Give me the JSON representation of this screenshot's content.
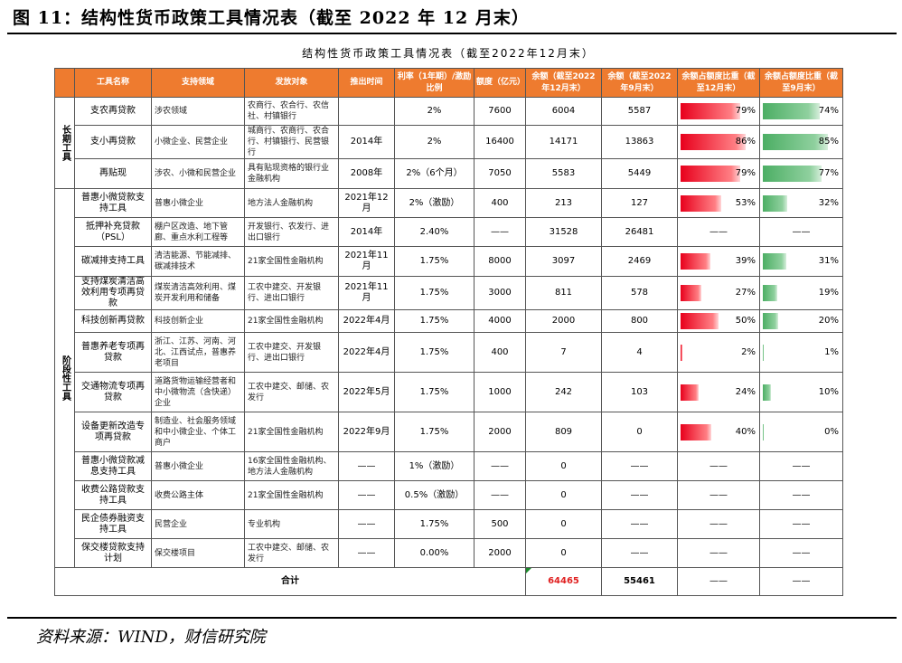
{
  "figure_title": "图 11：结构性货币政策工具情况表（截至 2022 年 12 月末）",
  "table_title": "结构性货币政策工具情况表（截至2022年12月末）",
  "headers": [
    "工具名称",
    "支持领域",
    "发放对象",
    "推出时间",
    "利率（1年期）/激励比例",
    "额度（亿元）",
    "余额（截至2022年12月末）",
    "余额（截至2022年9月末）",
    "余额占额度比重（截至12月末）",
    "余额占额度比重（截至9月末）"
  ],
  "groups": {
    "long_term": "长期工具",
    "phase": "阶段性工具"
  },
  "rows": [
    {
      "name": "支农再贷款",
      "area": "涉农领域",
      "target": "农商行、农合行、农信社、村镇银行",
      "time": "",
      "rate": "2%",
      "quota": "7600",
      "bal12": "6004",
      "bal9": "5587",
      "pct12": "79%",
      "pct9": "74%",
      "r12": 0.79,
      "r9": 0.74
    },
    {
      "name": "支小再贷款",
      "area": "小微企业、民营企业",
      "target": "城商行、农商行、农合行、村镇银行、民营银行",
      "time": "2014年",
      "rate": "2%",
      "quota": "16400",
      "bal12": "14171",
      "bal9": "13863",
      "pct12": "86%",
      "pct9": "85%",
      "r12": 0.86,
      "r9": 0.85
    },
    {
      "name": "再贴现",
      "area": "涉农、小微和民营企业",
      "target": "具有贴现资格的银行业金融机构",
      "time": "2008年",
      "rate": "2%（6个月）",
      "quota": "7050",
      "bal12": "5583",
      "bal9": "5449",
      "pct12": "79%",
      "pct9": "77%",
      "r12": 0.79,
      "r9": 0.77
    },
    {
      "name": "普惠小微贷款支持工具",
      "area": "普惠小微企业",
      "target": "地方法人金融机构",
      "time": "2021年12月",
      "rate": "2%（激励）",
      "quota": "400",
      "bal12": "213",
      "bal9": "127",
      "pct12": "53%",
      "pct9": "32%",
      "r12": 0.53,
      "r9": 0.32
    },
    {
      "name": "抵押补充贷款（PSL）",
      "area": "棚户区改造、地下管廊、重点水利工程等",
      "target": "开发银行、农发行、进出口银行",
      "time": "2014年",
      "rate": "2.40%",
      "quota": "——",
      "bal12": "31528",
      "bal9": "26481",
      "pct12": "——",
      "pct9": "——",
      "r12": null,
      "r9": null
    },
    {
      "name": "碳减排支持工具",
      "area": "清洁能源、节能减排、碳减排技术",
      "target": "21家全国性金融机构",
      "time": "2021年11月",
      "rate": "1.75%",
      "quota": "8000",
      "bal12": "3097",
      "bal9": "2469",
      "pct12": "39%",
      "pct9": "31%",
      "r12": 0.39,
      "r9": 0.31
    },
    {
      "name": "支持煤炭清洁高效利用专项再贷款",
      "area": "煤炭清洁高效利用、煤炭开发利用和储备",
      "target": "工农中建交、开发银行、进出口银行",
      "time": "2021年11月",
      "rate": "1.75%",
      "quota": "3000",
      "bal12": "811",
      "bal9": "578",
      "pct12": "27%",
      "pct9": "19%",
      "r12": 0.27,
      "r9": 0.19
    },
    {
      "name": "科技创新再贷款",
      "area": "科技创新企业",
      "target": "21家全国性金融机构",
      "time": "2022年4月",
      "rate": "1.75%",
      "quota": "4000",
      "bal12": "2000",
      "bal9": "800",
      "pct12": "50%",
      "pct9": "20%",
      "r12": 0.5,
      "r9": 0.2
    },
    {
      "name": "普惠养老专项再贷款",
      "area": "浙江、江苏、河南、河北、江西试点，普惠养老项目",
      "target": "工农中建交、开发银行、进出口银行",
      "time": "2022年4月",
      "rate": "1.75%",
      "quota": "400",
      "bal12": "7",
      "bal9": "4",
      "pct12": "2%",
      "pct9": "1%",
      "r12": 0.02,
      "r9": 0.01
    },
    {
      "name": "交通物流专项再贷款",
      "area": "道路货物运输经营者和中小微物流（含快递）企业",
      "target": "工农中建交、邮储、农发行",
      "time": "2022年5月",
      "rate": "1.75%",
      "quota": "1000",
      "bal12": "242",
      "bal9": "103",
      "pct12": "24%",
      "pct9": "10%",
      "r12": 0.24,
      "r9": 0.1
    },
    {
      "name": "设备更新改造专项再贷款",
      "area": "制造业、社会服务领域和中小微企业、个体工商户",
      "target": "21家全国性金融机构",
      "time": "2022年9月",
      "rate": "1.75%",
      "quota": "2000",
      "bal12": "809",
      "bal9": "0",
      "pct12": "40%",
      "pct9": "0%",
      "r12": 0.4,
      "r9": 0.0
    },
    {
      "name": "普惠小微贷款减息支持工具",
      "area": "普惠小微企业",
      "target": "16家全国性金融机构、地方法人金融机构",
      "time": "——",
      "rate": "1%（激励）",
      "quota": "——",
      "bal12": "0",
      "bal9": "——",
      "pct12": "——",
      "pct9": "——",
      "r12": null,
      "r9": null
    },
    {
      "name": "收费公路贷款支持工具",
      "area": "收费公路主体",
      "target": "21家全国性金融机构",
      "time": "——",
      "rate": "0.5%（激励）",
      "quota": "——",
      "bal12": "0",
      "bal9": "——",
      "pct12": "——",
      "pct9": "——",
      "r12": null,
      "r9": null
    },
    {
      "name": "民企债券融资支持工具",
      "area": "民营企业",
      "target": "专业机构",
      "time": "——",
      "rate": "1.75%",
      "quota": "500",
      "bal12": "0",
      "bal9": "——",
      "pct12": "——",
      "pct9": "——",
      "r12": null,
      "r9": null
    },
    {
      "name": "保交楼贷款支持计划",
      "area": "保交楼项目",
      "target": "工农中建交、邮储、农发行",
      "time": "——",
      "rate": "0.00%",
      "quota": "2000",
      "bal12": "0",
      "bal9": "——",
      "pct12": "——",
      "pct9": "——",
      "r12": null,
      "r9": null
    }
  ],
  "total": {
    "label": "合计",
    "bal12": "64465",
    "bal9": "55461",
    "pct12": "——",
    "pct9": "——"
  },
  "colors": {
    "header_bg": "#ee7b2f",
    "bar_red": "#e8001c",
    "bar_green": "#4cae64",
    "total_red": "#e02020"
  },
  "source": "资料来源：WIND，财信研究院"
}
